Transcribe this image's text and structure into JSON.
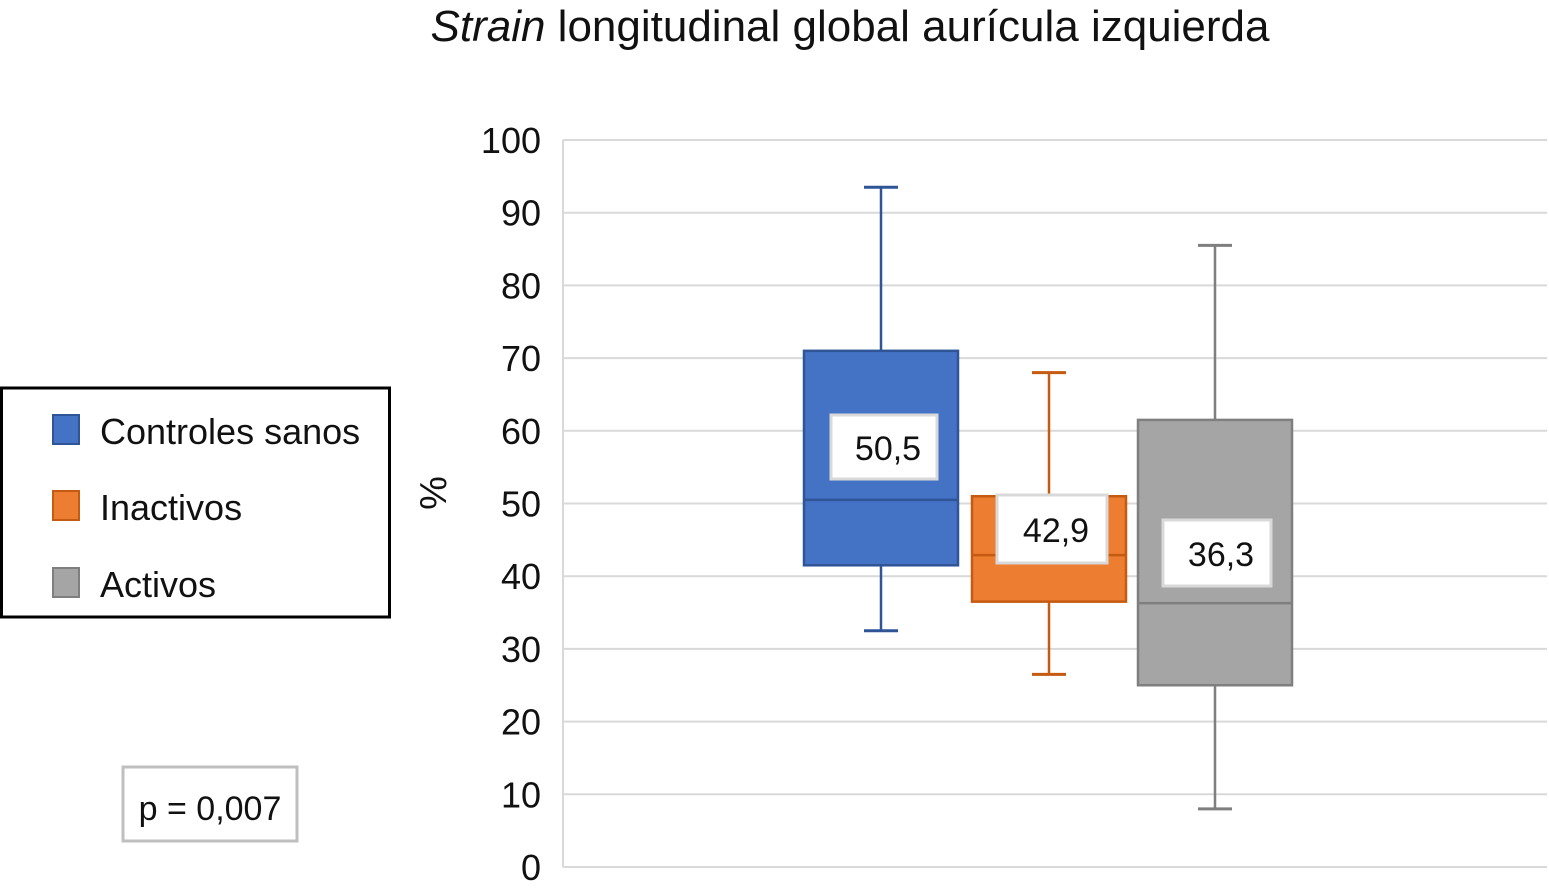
{
  "chart_data": {
    "type": "box",
    "title_italic": "Strain",
    "title_rest": " longitudinal global aurícula izquierda",
    "ylabel": "%",
    "ylim": [
      0,
      100
    ],
    "yticks": [
      0,
      10,
      20,
      30,
      40,
      50,
      60,
      70,
      80,
      90,
      100
    ],
    "grid": true,
    "legend_position": "left",
    "series": [
      {
        "name": "Controles sanos",
        "color": "#4472C4",
        "stroke": "#2F5597",
        "min": 32.5,
        "q1": 41.5,
        "median": 50.5,
        "q3": 71,
        "max": 93.5,
        "label": "50,5"
      },
      {
        "name": "Inactivos",
        "color": "#ED7D31",
        "stroke": "#C55A11",
        "min": 26.5,
        "q1": 36.5,
        "median": 42.9,
        "q3": 51,
        "max": 68,
        "label": "42,9"
      },
      {
        "name": "Activos",
        "color": "#A5A5A5",
        "stroke": "#7F7F7F",
        "min": 8,
        "q1": 25,
        "median": 36.3,
        "q3": 61.5,
        "max": 85.5,
        "label": "36,3"
      }
    ],
    "annotation": "p = 0,007"
  }
}
